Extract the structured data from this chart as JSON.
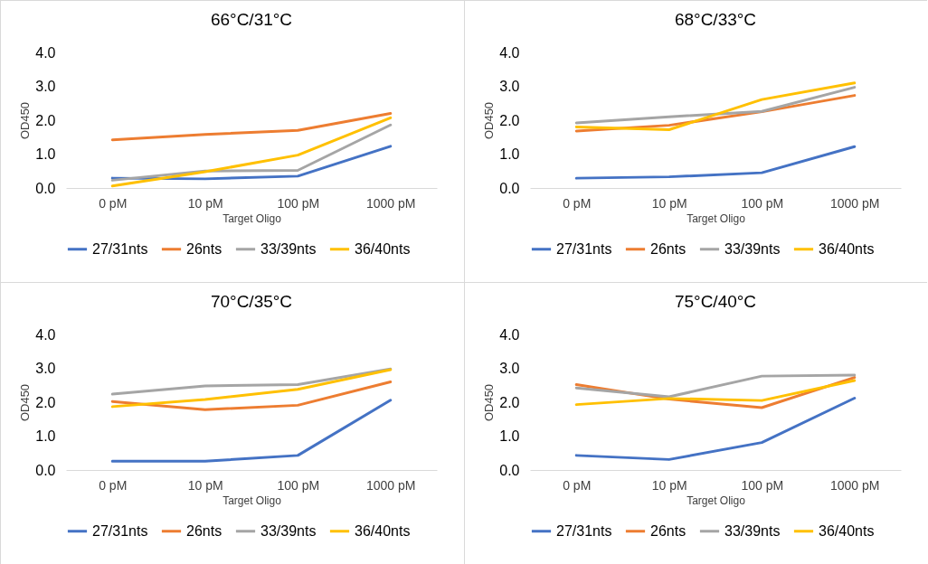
{
  "chart_data": [
    {
      "type": "line",
      "title": "66°C/31°C",
      "xlabel": "Target Oligo",
      "ylabel": "OD450",
      "categories": [
        "0 pM",
        "10 pM",
        "100 pM",
        "1000 pM"
      ],
      "ylim": [
        0,
        4
      ],
      "yticks": [
        {
          "value": 0,
          "label": "0.0"
        },
        {
          "value": 1,
          "label": "1.0"
        },
        {
          "value": 2,
          "label": "2.0"
        },
        {
          "value": 3,
          "label": "3.0"
        },
        {
          "value": 4,
          "label": "4.0"
        }
      ],
      "legend": "bottom",
      "series": [
        {
          "name": "27/31nts",
          "color": "#4472c4",
          "values": [
            0.29,
            0.27,
            0.35,
            1.23
          ]
        },
        {
          "name": "26nts",
          "color": "#ed7d31",
          "values": [
            1.42,
            1.58,
            1.7,
            2.2
          ]
        },
        {
          "name": "33/39nts",
          "color": "#a5a5a5",
          "values": [
            0.23,
            0.5,
            0.52,
            1.86
          ]
        },
        {
          "name": "36/40nts",
          "color": "#ffc000",
          "values": [
            0.06,
            0.48,
            0.97,
            2.07
          ]
        }
      ]
    },
    {
      "type": "line",
      "title": "68°C/33°C",
      "xlabel": "Target Oligo",
      "ylabel": "OD450",
      "categories": [
        "0 pM",
        "10 pM",
        "100 pM",
        "1000 pM"
      ],
      "ylim": [
        0,
        4
      ],
      "yticks": [
        {
          "value": 0,
          "label": "0.0"
        },
        {
          "value": 1,
          "label": "1.0"
        },
        {
          "value": 2,
          "label": "2.0"
        },
        {
          "value": 3,
          "label": "3.0"
        },
        {
          "value": 4,
          "label": "4.0"
        }
      ],
      "legend": "bottom",
      "series": [
        {
          "name": "27/31nts",
          "color": "#4472c4",
          "values": [
            0.29,
            0.33,
            0.45,
            1.22
          ]
        },
        {
          "name": "26nts",
          "color": "#ed7d31",
          "values": [
            1.68,
            1.85,
            2.25,
            2.73
          ]
        },
        {
          "name": "33/39nts",
          "color": "#a5a5a5",
          "values": [
            1.92,
            2.1,
            2.26,
            2.97
          ]
        },
        {
          "name": "36/40nts",
          "color": "#ffc000",
          "values": [
            1.8,
            1.72,
            2.61,
            3.1
          ]
        }
      ]
    },
    {
      "type": "line",
      "title": "70°C/35°C",
      "xlabel": "Target Oligo",
      "ylabel": "OD450",
      "categories": [
        "0 pM",
        "10 pM",
        "100 pM",
        "1000 pM"
      ],
      "ylim": [
        0,
        4
      ],
      "yticks": [
        {
          "value": 0,
          "label": "0.0"
        },
        {
          "value": 1,
          "label": "1.0"
        },
        {
          "value": 2,
          "label": "2.0"
        },
        {
          "value": 3,
          "label": "3.0"
        },
        {
          "value": 4,
          "label": "4.0"
        }
      ],
      "legend": "bottom",
      "series": [
        {
          "name": "27/31nts",
          "color": "#4472c4",
          "values": [
            0.26,
            0.26,
            0.43,
            2.06
          ]
        },
        {
          "name": "26nts",
          "color": "#ed7d31",
          "values": [
            2.02,
            1.78,
            1.91,
            2.6
          ]
        },
        {
          "name": "33/39nts",
          "color": "#a5a5a5",
          "values": [
            2.24,
            2.48,
            2.52,
            2.98
          ]
        },
        {
          "name": "36/40nts",
          "color": "#ffc000",
          "values": [
            1.87,
            2.08,
            2.38,
            2.96
          ]
        }
      ]
    },
    {
      "type": "line",
      "title": "75°C/40°C",
      "xlabel": "Target Oligo",
      "ylabel": "OD450",
      "categories": [
        "0 pM",
        "10 pM",
        "100 pM",
        "1000 pM"
      ],
      "ylim": [
        0,
        4
      ],
      "yticks": [
        {
          "value": 0,
          "label": "0.0"
        },
        {
          "value": 1,
          "label": "1.0"
        },
        {
          "value": 2,
          "label": "2.0"
        },
        {
          "value": 3,
          "label": "3.0"
        },
        {
          "value": 4,
          "label": "4.0"
        }
      ],
      "legend": "bottom",
      "series": [
        {
          "name": "27/31nts",
          "color": "#4472c4",
          "values": [
            0.43,
            0.31,
            0.81,
            2.12
          ]
        },
        {
          "name": "26nts",
          "color": "#ed7d31",
          "values": [
            2.52,
            2.09,
            1.84,
            2.73
          ]
        },
        {
          "name": "33/39nts",
          "color": "#a5a5a5",
          "values": [
            2.42,
            2.16,
            2.77,
            2.8
          ]
        },
        {
          "name": "36/40nts",
          "color": "#ffc000",
          "values": [
            1.93,
            2.11,
            2.05,
            2.64
          ]
        }
      ]
    }
  ]
}
